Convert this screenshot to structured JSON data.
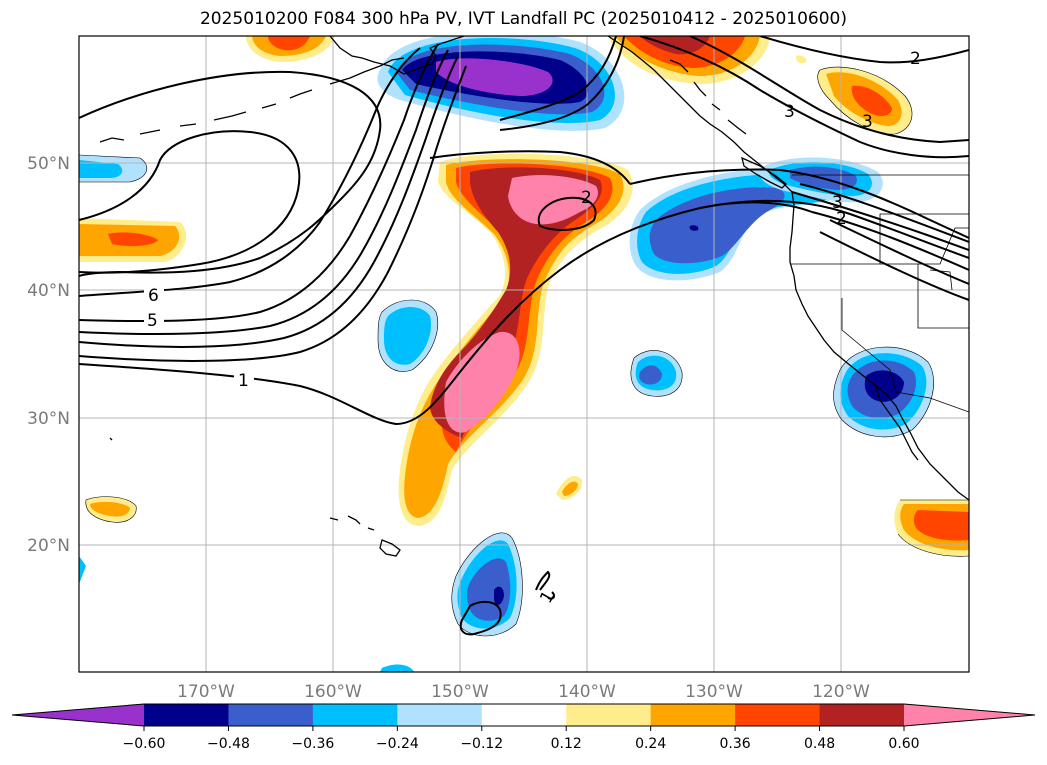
{
  "title": "2025010200 F084 300 hPa PV, IVT Landfall PC (2025010412 - 2025010600)",
  "map": {
    "lon_labels": [
      "170°W",
      "160°W",
      "150°W",
      "140°W",
      "130°W",
      "120°W"
    ],
    "lat_labels": [
      "50°N",
      "40°N",
      "30°N",
      "20°N"
    ]
  },
  "contour_labels": [
    "6",
    "5",
    "1",
    "2",
    "3",
    "3",
    "2",
    "2",
    "3",
    "1"
  ],
  "colorbar": {
    "tick_labels": [
      "−0.60",
      "−0.48",
      "−0.36",
      "−0.24",
      "−0.12",
      "0.12",
      "0.24",
      "0.36",
      "0.48",
      "0.60"
    ],
    "colors": [
      "#9932cc",
      "#00008b",
      "#3a5fcd",
      "#00bfff",
      "#b0e2ff",
      "#ffffff",
      "#ffec8b",
      "#ffa500",
      "#ff4500",
      "#b22222",
      "#ff82ab",
      "#ff82ab"
    ]
  }
}
